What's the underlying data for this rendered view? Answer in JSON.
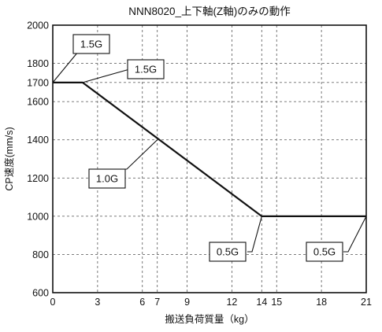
{
  "chart_data": {
    "type": "line",
    "title": "NNN8020_上下軸(Z軸)のみの動作",
    "xlabel": "搬送負荷質量（kg）",
    "ylabel": "CP速度(mm/s)",
    "xlim": [
      0,
      21
    ],
    "ylim": [
      600,
      2000
    ],
    "x_ticks": [
      0,
      3,
      6,
      7,
      9,
      12,
      14,
      15,
      18,
      21
    ],
    "y_ticks": [
      600,
      800,
      1000,
      1200,
      1400,
      1600,
      1700,
      1800,
      2000
    ],
    "grid": true,
    "series": [
      {
        "x": [
          0,
          2,
          14,
          21
        ],
        "y": [
          1700,
          1700,
          1000,
          1000
        ]
      }
    ],
    "annotations": [
      {
        "text": "1.5G",
        "x": 0,
        "y": 1700
      },
      {
        "text": "1.5G",
        "x": 2,
        "y": 1700
      },
      {
        "text": "1.0G",
        "x": 7,
        "y": 1400
      },
      {
        "text": "0.5G",
        "x": 14,
        "y": 1000
      },
      {
        "text": "0.5G",
        "x": 21,
        "y": 1000
      }
    ]
  }
}
